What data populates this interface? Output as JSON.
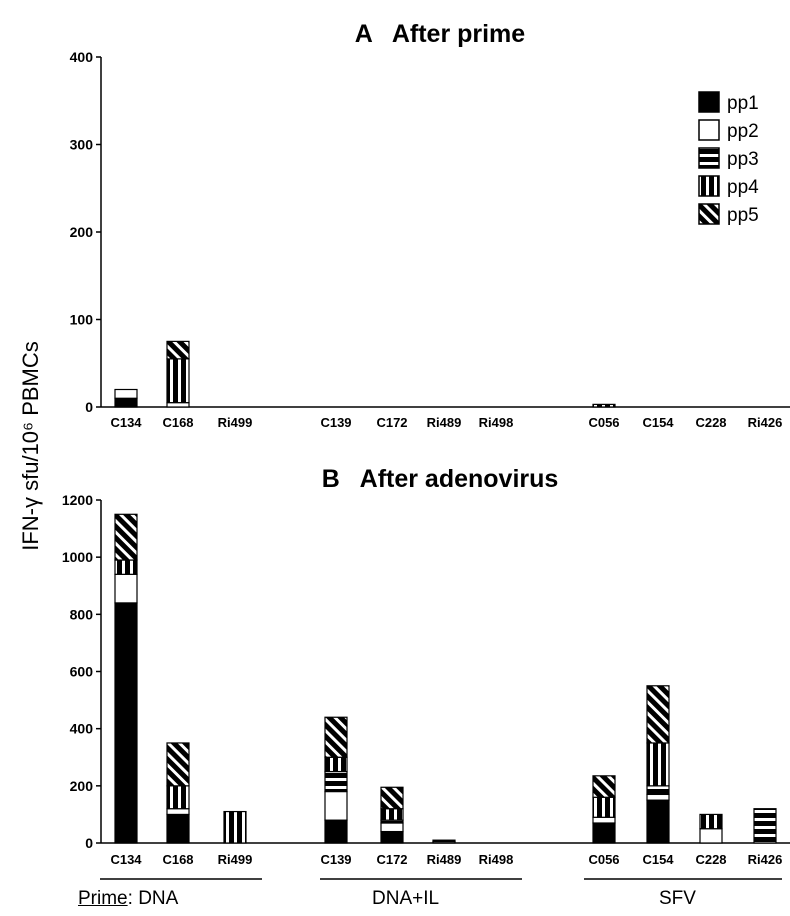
{
  "y_axis_label": "IFN-γ sfu/10⁶ PBMCs",
  "prime_label": {
    "key": "Prime",
    "sep": ": "
  },
  "groups": [
    "DNA",
    "DNA+IL",
    "SFV"
  ],
  "legend": [
    {
      "name": "pp1",
      "pattern": "solid-black"
    },
    {
      "name": "pp2",
      "pattern": "open-white"
    },
    {
      "name": "pp3",
      "pattern": "horizontal-stripes"
    },
    {
      "name": "pp4",
      "pattern": "vertical-stripes"
    },
    {
      "name": "pp5",
      "pattern": "diagonal-stripes"
    }
  ],
  "chart_data": [
    {
      "type": "bar",
      "stacked": true,
      "panel": "A",
      "title": "A   After prime",
      "ylim": [
        0,
        400
      ],
      "yticks": [
        0,
        100,
        200,
        300,
        400
      ],
      "legend_position": "top-right",
      "categories": [
        "C134",
        "C168",
        "Ri499",
        "C139",
        "C172",
        "Ri489",
        "Ri498",
        "C056",
        "C154",
        "C228",
        "Ri426"
      ],
      "series": [
        {
          "name": "pp1",
          "values": [
            10,
            0,
            0,
            0,
            0,
            0,
            0,
            0,
            0,
            0,
            0
          ]
        },
        {
          "name": "pp2",
          "values": [
            10,
            5,
            0,
            0,
            0,
            0,
            0,
            0,
            0,
            0,
            0
          ]
        },
        {
          "name": "pp3",
          "values": [
            0,
            0,
            0,
            0,
            0,
            0,
            0,
            0,
            0,
            0,
            0
          ]
        },
        {
          "name": "pp4",
          "values": [
            0,
            50,
            0,
            0,
            0,
            0,
            0,
            3,
            0,
            0,
            0
          ]
        },
        {
          "name": "pp5",
          "values": [
            0,
            20,
            0,
            0,
            0,
            0,
            0,
            0,
            0,
            0,
            0
          ]
        }
      ]
    },
    {
      "type": "bar",
      "stacked": true,
      "panel": "B",
      "title": "B   After adenovirus",
      "ylim": [
        0,
        1200
      ],
      "yticks": [
        0,
        200,
        400,
        600,
        800,
        1000,
        1200
      ],
      "categories": [
        "C134",
        "C168",
        "Ri499",
        "C139",
        "C172",
        "Ri489",
        "Ri498",
        "C056",
        "C154",
        "C228",
        "Ri426"
      ],
      "series": [
        {
          "name": "pp1",
          "values": [
            840,
            100,
            0,
            80,
            40,
            0,
            0,
            70,
            150,
            0,
            0
          ]
        },
        {
          "name": "pp2",
          "values": [
            100,
            20,
            0,
            100,
            30,
            5,
            0,
            20,
            20,
            50,
            0
          ]
        },
        {
          "name": "pp3",
          "values": [
            0,
            0,
            0,
            70,
            10,
            5,
            0,
            0,
            30,
            0,
            120
          ]
        },
        {
          "name": "pp4",
          "values": [
            50,
            80,
            110,
            50,
            40,
            0,
            0,
            70,
            150,
            50,
            0
          ]
        },
        {
          "name": "pp5",
          "values": [
            160,
            150,
            0,
            140,
            75,
            0,
            0,
            75,
            200,
            0,
            0
          ]
        }
      ]
    }
  ]
}
